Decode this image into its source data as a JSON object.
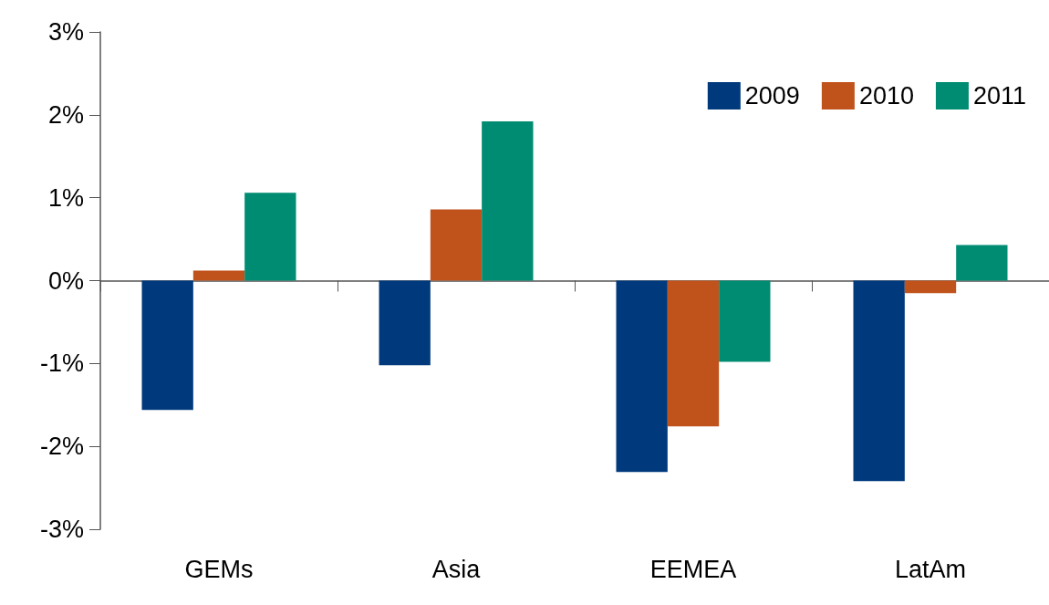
{
  "chart_data": {
    "type": "bar",
    "categories": [
      "GEMs",
      "Asia",
      "EEMEA",
      "LatAm"
    ],
    "series": [
      {
        "name": "2009",
        "color": "#003a7d",
        "values": [
          -1.56,
          -1.02,
          -2.31,
          -2.42
        ]
      },
      {
        "name": "2010",
        "color": "#c0531c",
        "values": [
          0.12,
          0.86,
          -1.76,
          -0.15
        ]
      },
      {
        "name": "2011",
        "color": "#008c72",
        "values": [
          1.06,
          1.92,
          -0.98,
          0.43
        ]
      }
    ],
    "ylim": [
      -3,
      3
    ],
    "yticks": [
      {
        "value": -3,
        "label": "-3%"
      },
      {
        "value": -2,
        "label": "-2%"
      },
      {
        "value": -1,
        "label": "-1%"
      },
      {
        "value": 0,
        "label": "0%"
      },
      {
        "value": 1,
        "label": "1%"
      },
      {
        "value": 2,
        "label": "2%"
      },
      {
        "value": 3,
        "label": "3%"
      }
    ],
    "legend": "top right"
  }
}
